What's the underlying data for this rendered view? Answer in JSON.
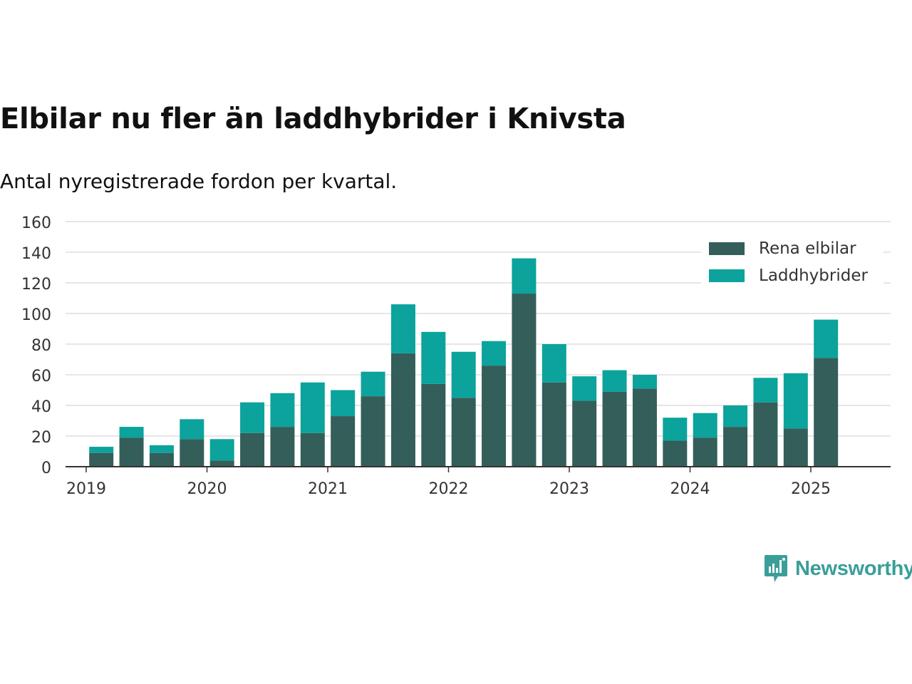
{
  "header": {
    "title": "Elbilar nu fler än laddhybrider i Knivsta",
    "subtitle": "Antal nyregistrerade fordon per kvartal."
  },
  "brand": {
    "name": "Newsworthy",
    "icon": "bar-chart-speech-bubble-icon",
    "color": "#3a9e99"
  },
  "chart_data": {
    "type": "bar",
    "stacked": true,
    "x": [
      "2019Q1",
      "2019Q2",
      "2019Q3",
      "2019Q4",
      "2020Q1",
      "2020Q2",
      "2020Q3",
      "2020Q4",
      "2021Q1",
      "2021Q2",
      "2021Q3",
      "2021Q4",
      "2022Q1",
      "2022Q2",
      "2022Q3",
      "2022Q4",
      "2023Q1",
      "2023Q2",
      "2023Q3",
      "2023Q4",
      "2024Q1",
      "2024Q2",
      "2024Q3",
      "2024Q4",
      "2025Q1",
      "2025Q2"
    ],
    "series": [
      {
        "name": "Rena elbilar",
        "color": "#345e5a",
        "values": [
          9,
          19,
          9,
          18,
          4,
          22,
          26,
          22,
          33,
          46,
          74,
          54,
          45,
          66,
          113,
          55,
          43,
          49,
          51,
          17,
          19,
          26,
          42,
          25,
          71,
          0
        ]
      },
      {
        "name": "Laddhybrider",
        "color": "#0ba39c",
        "values": [
          4,
          7,
          5,
          13,
          14,
          20,
          22,
          33,
          17,
          16,
          32,
          34,
          30,
          16,
          23,
          25,
          16,
          14,
          9,
          15,
          16,
          14,
          16,
          36,
          25,
          0
        ]
      }
    ],
    "ylim": [
      0,
      160
    ],
    "yticks": [
      0,
      20,
      40,
      60,
      80,
      100,
      120,
      140,
      160
    ],
    "xticks": [
      "2019",
      "2020",
      "2021",
      "2022",
      "2023",
      "2024",
      "2025"
    ],
    "grid": true,
    "legend": "top-right",
    "title": "Elbilar nu fler än laddhybrider i Knivsta",
    "subtitle": "Antal nyregistrerade fordon per kvartal."
  }
}
